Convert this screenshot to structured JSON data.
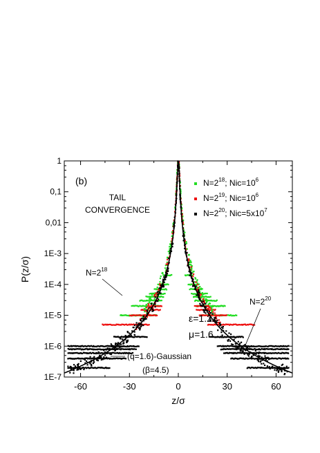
{
  "chart_data": {
    "type": "scatter",
    "panel_label": "(b)",
    "xlabel": "z/σ",
    "ylabel": "P(z/σ)",
    "xlim": [
      -70,
      70
    ],
    "ylim": [
      1e-07,
      1
    ],
    "yscale": "log",
    "x_ticks": [
      -60,
      -30,
      0,
      30,
      60
    ],
    "x_tick_labels": [
      "-60",
      "-30",
      "0",
      "30",
      "60"
    ],
    "y_ticks": [
      1e-07,
      1e-06,
      1e-05,
      0.0001,
      0.001,
      0.01,
      0.1,
      1
    ],
    "y_tick_labels": [
      "1E-7",
      "1E-6",
      "1E-5",
      "1E-4",
      "1E-3",
      "0,01",
      "0,1",
      "1"
    ],
    "grid": false,
    "legend_position": "top-right",
    "annotations": {
      "tail_line1": "TAIL",
      "tail_line2": "CONVERGENCE",
      "eps": "ε=1.2",
      "mu": "μ=1.6",
      "n18_main": "N=2",
      "n18_sup": "18",
      "n20_main": "N=2",
      "n20_sup": "20",
      "fit_line1": "(q=1.6)-Gaussian",
      "fit_line2": "(β=4.5)"
    },
    "legend": [
      {
        "base": "N=2",
        "exp": "18",
        "rest": "; Nic=10",
        "rest_exp": "6",
        "color": "#22dd22"
      },
      {
        "base": "N=2",
        "exp": "19",
        "rest": "; Nic=10",
        "rest_exp": "6",
        "color": "#ee1111"
      },
      {
        "base": "N=2",
        "exp": "20",
        "rest": "; Nic=5x10",
        "rest_exp": "7",
        "color": "#000000"
      }
    ],
    "fit_curve": {
      "name": "(q=1.6)-Gaussian",
      "q": 1.6,
      "beta": 4.5,
      "peak": 1
    },
    "series": [
      {
        "legend_index": 0,
        "color": "#22dd22",
        "levels": [
          {
            "y": 1e-05,
            "xmin": 13,
            "xmax": 36
          },
          {
            "y": 2e-05,
            "xmin": 11,
            "xmax": 29
          },
          {
            "y": 3e-05,
            "xmin": 10,
            "xmax": 24
          },
          {
            "y": 4e-05,
            "xmin": 9,
            "xmax": 20
          },
          {
            "y": 5e-05,
            "xmin": 8,
            "xmax": 18
          },
          {
            "y": 7e-05,
            "xmin": 7,
            "xmax": 15
          },
          {
            "y": 0.0001,
            "xmin": 6,
            "xmax": 13
          },
          {
            "y": 0.0002,
            "xmin": 4,
            "xmax": 9
          }
        ]
      },
      {
        "legend_index": 1,
        "color": "#ee1111",
        "levels": [
          {
            "y": 5e-06,
            "xmin": 18,
            "xmax": 47
          },
          {
            "y": 1e-05,
            "xmin": 13,
            "xmax": 30
          },
          {
            "y": 1.5e-05,
            "xmin": 11,
            "xmax": 23
          },
          {
            "y": 2e-05,
            "xmin": 10,
            "xmax": 19
          }
        ]
      },
      {
        "legend_index": 2,
        "color": "#000000",
        "levels": [
          {
            "y": 2e-07,
            "xmin": 42,
            "xmax": 68
          },
          {
            "y": 4e-07,
            "xmin": 32,
            "xmax": 68
          },
          {
            "y": 6e-07,
            "xmin": 28,
            "xmax": 68
          },
          {
            "y": 8e-07,
            "xmin": 26,
            "xmax": 68
          },
          {
            "y": 1e-06,
            "xmin": 24,
            "xmax": 68
          },
          {
            "y": 2e-06,
            "xmin": 19,
            "xmax": 40
          }
        ]
      }
    ]
  }
}
